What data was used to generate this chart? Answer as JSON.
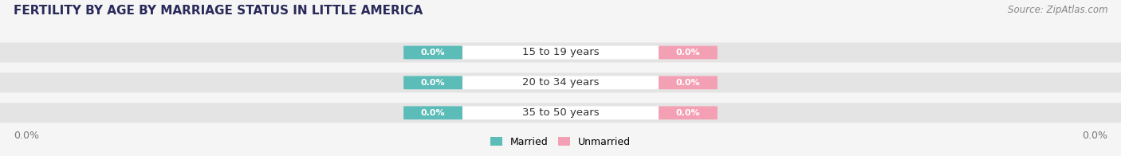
{
  "title": "FERTILITY BY AGE BY MARRIAGE STATUS IN LITTLE AMERICA",
  "source": "Source: ZipAtlas.com",
  "categories": [
    "15 to 19 years",
    "20 to 34 years",
    "35 to 50 years"
  ],
  "married_values": [
    0.0,
    0.0,
    0.0
  ],
  "unmarried_values": [
    0.0,
    0.0,
    0.0
  ],
  "married_color": "#5bbcb8",
  "unmarried_color": "#f4a0b4",
  "bar_bg_color": "#e4e4e4",
  "bar_height": 0.6,
  "title_fontsize": 11,
  "source_fontsize": 8.5,
  "label_fontsize": 9,
  "category_fontsize": 9.5,
  "value_label_fontsize": 8,
  "bg_color": "#f5f5f5",
  "left_label": "0.0%",
  "right_label": "0.0%",
  "legend_married": "Married",
  "legend_unmarried": "Unmarried",
  "title_color": "#2a2a5a",
  "source_color": "#888888",
  "axis_label_color": "#777777",
  "cat_text_color": "#333333"
}
